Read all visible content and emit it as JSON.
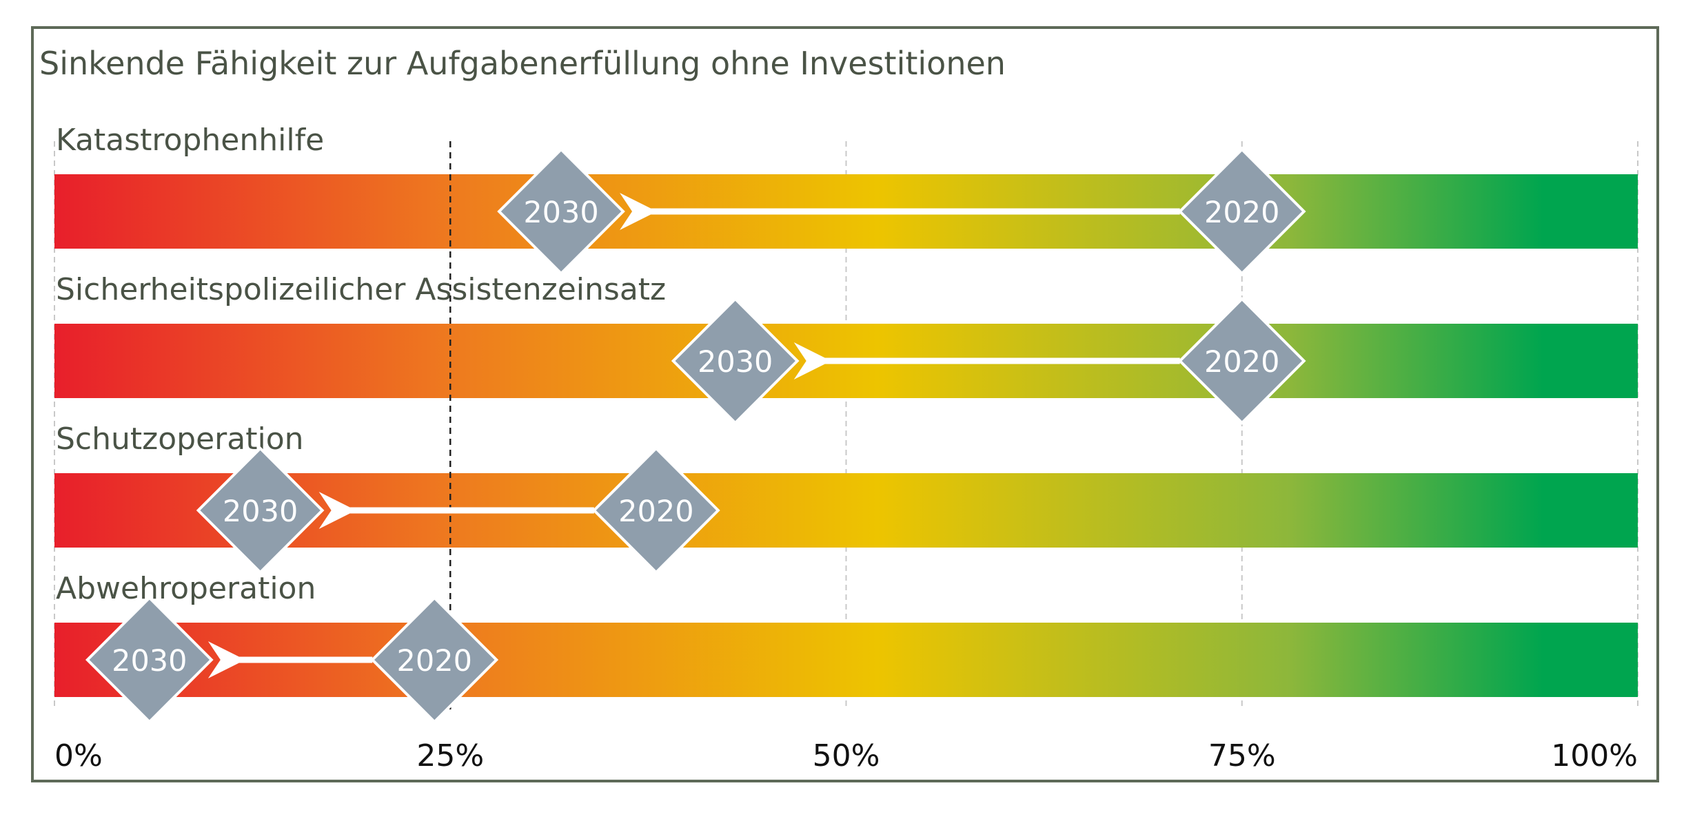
{
  "chart_data": {
    "type": "bar",
    "title": "Sinkende Fähigkeit zur Aufgabenerfüllung ohne Investitionen",
    "xlim": [
      0,
      100
    ],
    "x_unit": "%",
    "x_ticks": [
      {
        "value": 0,
        "label": "0%"
      },
      {
        "value": 25,
        "label": "25%"
      },
      {
        "value": 50,
        "label": "50%"
      },
      {
        "value": 75,
        "label": "75%"
      },
      {
        "value": 100,
        "label": "100%"
      }
    ],
    "reference_line": {
      "value": 25,
      "style": "dashed"
    },
    "grid": true,
    "gradient_colors": [
      "#e81f2b",
      "#ee7a1f",
      "#edc400",
      "#8db73b",
      "#00a54f"
    ],
    "marker_color": "#8f9eac",
    "categories": [
      "Katastrophenhilfe",
      "Sicherheitspolizeilicher Assistenzeinsatz",
      "Schutzoperation",
      "Abwehroperation"
    ],
    "series": [
      {
        "name": "2020",
        "values": [
          75,
          75,
          38,
          24
        ]
      },
      {
        "name": "2030",
        "values": [
          32,
          43,
          13,
          6
        ]
      }
    ],
    "arrow_direction": "2020-to-2030"
  }
}
